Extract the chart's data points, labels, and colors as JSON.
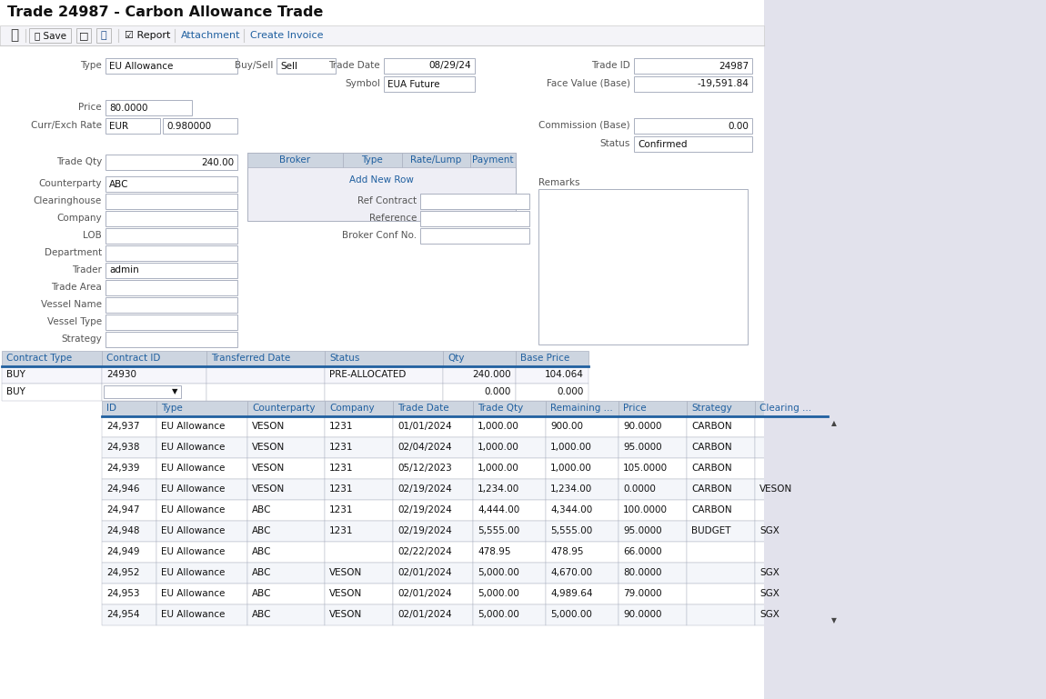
{
  "title": "Trade 24987 - Carbon Allowance Trade",
  "bg_color": "#eeeef5",
  "white": "#ffffff",
  "header_bg": "#cdd5e0",
  "blue_text": "#2060a0",
  "dark_text": "#111111",
  "gray_text": "#555555",
  "border_color": "#aab0c0",
  "input_bg": "#ffffff",
  "right_panel_color": "#e2e2ec",
  "broker_cols": [
    "Broker",
    "Type",
    "Rate/Lump",
    "Payment"
  ],
  "ref_fields": [
    "Ref Contract",
    "Reference",
    "Broker Conf No."
  ],
  "left_labels": [
    "Counterparty",
    "Clearinghouse",
    "Company",
    "LOB",
    "Department",
    "Trader",
    "Trade Area",
    "Vessel Name",
    "Vessel Type",
    "Strategy"
  ],
  "contract_cols": [
    "Contract Type",
    "Contract ID",
    "Transferred Date",
    "Status",
    "Qty",
    "Base Price"
  ],
  "contract_col_w": [
    110,
    115,
    130,
    130,
    80,
    80
  ],
  "contract_rows": [
    [
      "BUY",
      "24930",
      "",
      "PRE-ALLOCATED",
      "240.000",
      "104.064"
    ],
    [
      "BUY",
      "",
      "",
      "",
      "0.000",
      "0.000"
    ]
  ],
  "trade_cols": [
    "ID",
    "Type",
    "Counterparty",
    "Company",
    "Trade Date",
    "Trade Qty",
    "Remaining ...",
    "Price",
    "Strategy",
    "Clearing ..."
  ],
  "trade_col_w": [
    60,
    100,
    85,
    75,
    88,
    80,
    80,
    75,
    75,
    80
  ],
  "trade_rows": [
    [
      "24,937",
      "EU Allowance",
      "VESON",
      "1231",
      "01/01/2024",
      "1,000.00",
      "900.00",
      "90.0000",
      "CARBON",
      ""
    ],
    [
      "24,938",
      "EU Allowance",
      "VESON",
      "1231",
      "02/04/2024",
      "1,000.00",
      "1,000.00",
      "95.0000",
      "CARBON",
      ""
    ],
    [
      "24,939",
      "EU Allowance",
      "VESON",
      "1231",
      "05/12/2023",
      "1,000.00",
      "1,000.00",
      "105.0000",
      "CARBON",
      ""
    ],
    [
      "24,946",
      "EU Allowance",
      "VESON",
      "1231",
      "02/19/2024",
      "1,234.00",
      "1,234.00",
      "0.0000",
      "CARBON",
      "VESON"
    ],
    [
      "24,947",
      "EU Allowance",
      "ABC",
      "1231",
      "02/19/2024",
      "4,444.00",
      "4,344.00",
      "100.0000",
      "CARBON",
      ""
    ],
    [
      "24,948",
      "EU Allowance",
      "ABC",
      "1231",
      "02/19/2024",
      "5,555.00",
      "5,555.00",
      "95.0000",
      "BUDGET",
      "SGX"
    ],
    [
      "24,949",
      "EU Allowance",
      "ABC",
      "",
      "02/22/2024",
      "478.95",
      "478.95",
      "66.0000",
      "",
      ""
    ],
    [
      "24,952",
      "EU Allowance",
      "ABC",
      "VESON",
      "02/01/2024",
      "5,000.00",
      "4,670.00",
      "80.0000",
      "",
      "SGX"
    ],
    [
      "24,953",
      "EU Allowance",
      "ABC",
      "VESON",
      "02/01/2024",
      "5,000.00",
      "4,989.64",
      "79.0000",
      "",
      "SGX"
    ],
    [
      "24,954",
      "EU Allowance",
      "ABC",
      "VESON",
      "02/01/2024",
      "5,000.00",
      "5,000.00",
      "90.0000",
      "",
      "SGX"
    ]
  ]
}
